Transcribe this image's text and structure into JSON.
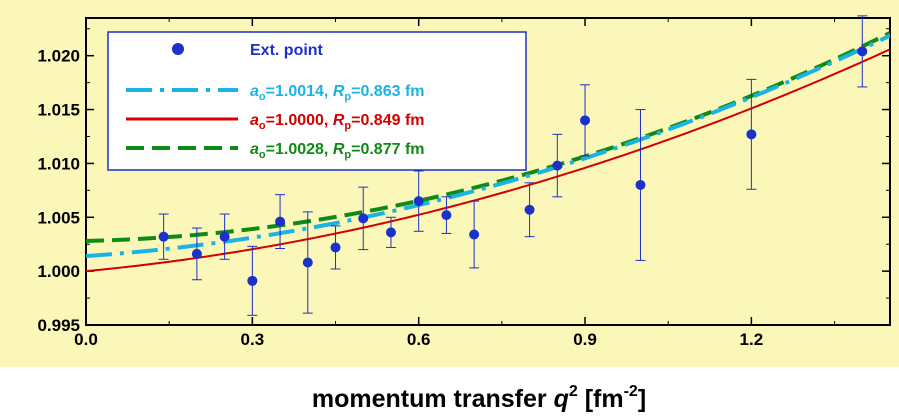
{
  "chart_data": {
    "type": "scatter",
    "xlabel": {
      "main": "momentum transfer ",
      "var": "q",
      "var_sup": "2",
      "unit_open": " [fm",
      "unit_sup": "-2",
      "unit_close": "]"
    },
    "ylabel": "",
    "xlim": [
      0.0,
      1.45
    ],
    "ylim": [
      0.995,
      1.0235
    ],
    "x_ticks": [
      {
        "value": 0.0,
        "label": "0.0"
      },
      {
        "value": 0.3,
        "label": "0.3"
      },
      {
        "value": 0.6,
        "label": "0.6"
      },
      {
        "value": 0.9,
        "label": "0.9"
      },
      {
        "value": 1.2,
        "label": "1.2"
      }
    ],
    "y_ticks": [
      {
        "value": 0.995,
        "label": "0.995"
      },
      {
        "value": 1.0,
        "label": "1.000"
      },
      {
        "value": 1.005,
        "label": "1.005"
      },
      {
        "value": 1.01,
        "label": "1.010"
      },
      {
        "value": 1.015,
        "label": "1.015"
      },
      {
        "value": 1.02,
        "label": "1.020"
      }
    ],
    "grid": false,
    "legend_position": "top-left",
    "background": "#fbf7b8",
    "points": {
      "name": "Ext. point",
      "color": "#1c31c9",
      "x": [
        0.14,
        0.2,
        0.25,
        0.3,
        0.35,
        0.4,
        0.45,
        0.5,
        0.55,
        0.6,
        0.65,
        0.7,
        0.8,
        0.85,
        0.9,
        1.0,
        1.2,
        1.4
      ],
      "y": [
        1.0032,
        1.0016,
        1.0032,
        0.9991,
        1.0046,
        1.0008,
        1.0022,
        1.0049,
        1.0036,
        1.0065,
        1.0052,
        1.0034,
        1.0057,
        1.0098,
        1.014,
        1.008,
        1.0127,
        1.0204
      ],
      "err": [
        0.0021,
        0.0024,
        0.0021,
        0.0032,
        0.0025,
        0.0047,
        0.002,
        0.0029,
        0.0014,
        0.0028,
        0.0017,
        0.0031,
        0.0025,
        0.0029,
        0.0033,
        0.007,
        0.0051,
        0.0033
      ]
    },
    "series": [
      {
        "a_sym": "a",
        "a_sub": "o",
        "a_val": "=1.0014, ",
        "r_sym": "R",
        "r_sub": "p",
        "r_val": "=0.863 fm",
        "color": "#1ab3e6",
        "style": "dashdot",
        "a0": 1.0014,
        "b": 0.0035,
        "c": 0.00732
      },
      {
        "a_sym": "a",
        "a_sub": "o",
        "a_val": "=1.0000, ",
        "r_sym": "R",
        "r_sub": "p",
        "r_val": "=0.849 fm",
        "color": "#d40000",
        "style": "solid",
        "a0": 1.0,
        "b": 0.00485,
        "c": 0.00645
      },
      {
        "a_sym": "a",
        "a_sub": "o",
        "a_val": "=1.0028, ",
        "r_sym": "R",
        "r_sub": "p",
        "r_val": "=0.877 fm",
        "color": "#0f8a15",
        "style": "dashed",
        "a0": 1.0028,
        "b": 0.0012,
        "c": 0.00836
      }
    ]
  }
}
